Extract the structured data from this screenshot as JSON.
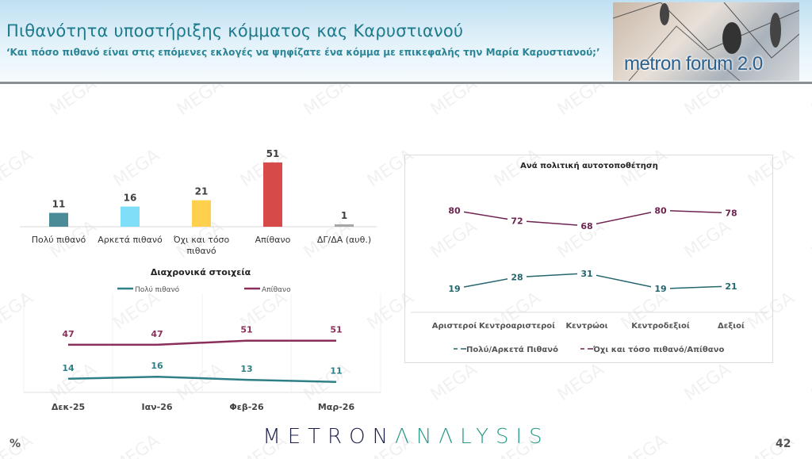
{
  "header": {
    "title": "Πιθανότητα υποστήριξης κόμματος κας Καρυστιανού",
    "subtitle": "‘Και πόσο πιθανό είναι στις επόμενες εκλογές να ψηφίζατε ένα κόμμα με επικεφαλής την Μαρία Καρυστιανού;’",
    "logo_text": "metron forum 2.0"
  },
  "footer": {
    "unit": "%",
    "brand_part1": "METRON",
    "brand_part2": "ΛNΛLYSIS",
    "page_number": "42"
  },
  "watermark": "MEGA",
  "chart_data": [
    {
      "type": "bar",
      "categories": [
        "Πολύ πιθανό",
        "Αρκετά πιθανό",
        "Όχι και τόσο πιθανό",
        "Απίθανο",
        "ΔΓ/ΔΑ (αυθ.)"
      ],
      "values": [
        11,
        16,
        21,
        51,
        1
      ],
      "colors": [
        "#4b8b98",
        "#7fdff8",
        "#ffd04d",
        "#d64a4a",
        "#a6a6a6"
      ]
    },
    {
      "type": "line",
      "title": "Διαχρονικά στοιχεία",
      "categories": [
        "Δεκ-25",
        "Ιαν-26",
        "Φεβ-26",
        "Μαρ-26"
      ],
      "series": [
        {
          "name": "Πολύ πιθανό",
          "values": [
            14,
            16,
            13,
            11
          ],
          "color": "#2f7f86"
        },
        {
          "name": "Απίθανο",
          "values": [
            47,
            47,
            51,
            51
          ],
          "color": "#8a2f5a"
        }
      ],
      "legend": "top"
    },
    {
      "type": "line",
      "title": "Ανά πολιτική αυτοτοποθέτηση",
      "categories": [
        "Αριστεροί",
        "Κεντροαριστεροί",
        "Κεντρώοι",
        "Κεντροδεξιοί",
        "Δεξιοί"
      ],
      "series": [
        {
          "name": "Πολύ/Αρκετά Πιθανό",
          "values": [
            19,
            28,
            31,
            19,
            21
          ],
          "color": "#24666e"
        },
        {
          "name": "Όχι και τόσο πιθανό/Απίθανο",
          "values": [
            80,
            72,
            68,
            80,
            78
          ],
          "color": "#6e2450"
        }
      ],
      "legend": "bottom"
    }
  ]
}
